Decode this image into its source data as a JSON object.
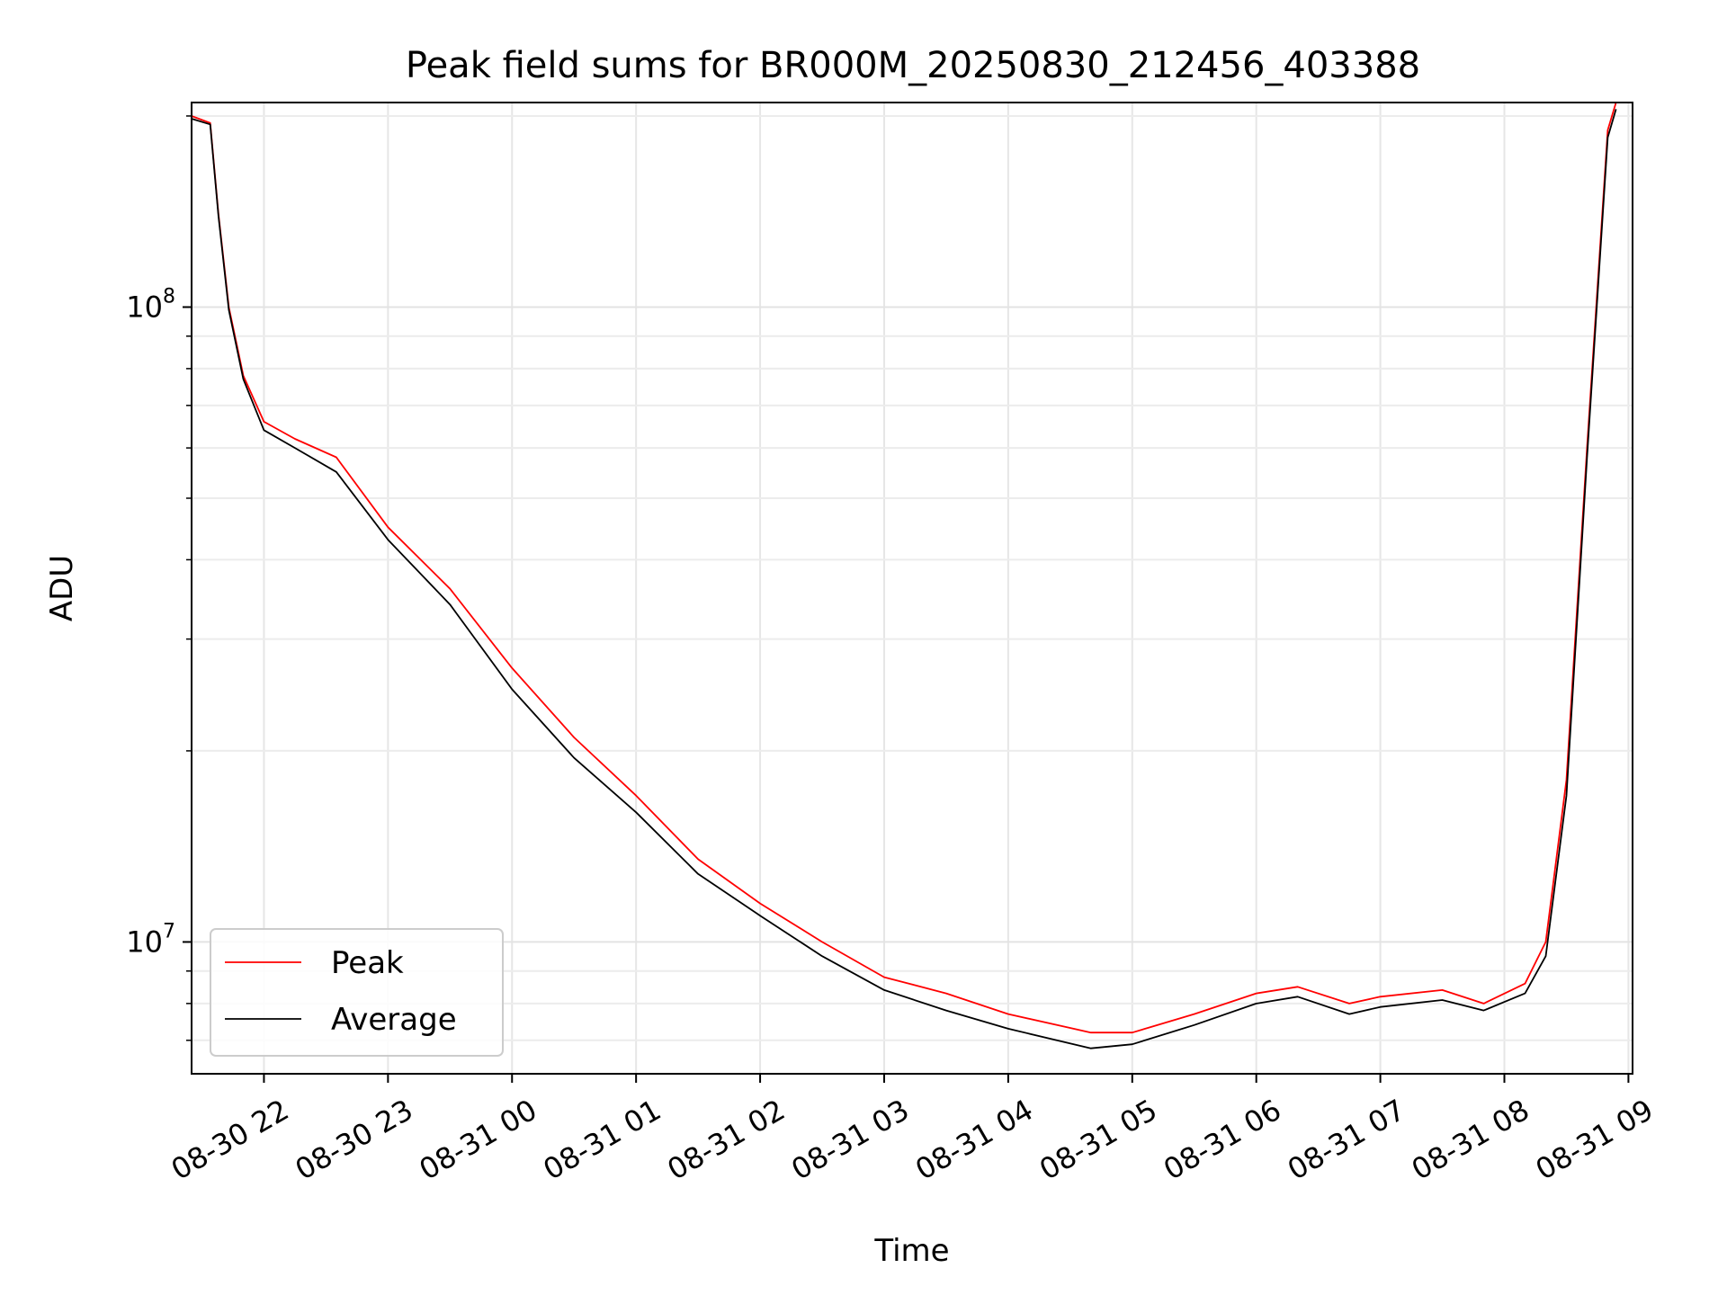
{
  "chart_data": {
    "type": "line",
    "title": "Peak field sums for BR000M_20250830_212456_403388",
    "xlabel": "Time",
    "ylabel": "ADU",
    "yscale": "log",
    "xlim": [
      "2025-08-30 21:25",
      "2025-08-31 09:02"
    ],
    "ylim": [
      6200000,
      210000000
    ],
    "grid": true,
    "legend_position": "lower-left",
    "x_ticks": [
      {
        "value": "2025-08-30 22:00",
        "label": "08-30 22"
      },
      {
        "value": "2025-08-30 23:00",
        "label": "08-30 23"
      },
      {
        "value": "2025-08-31 00:00",
        "label": "08-31 00"
      },
      {
        "value": "2025-08-31 01:00",
        "label": "08-31 01"
      },
      {
        "value": "2025-08-31 02:00",
        "label": "08-31 02"
      },
      {
        "value": "2025-08-31 03:00",
        "label": "08-31 03"
      },
      {
        "value": "2025-08-31 04:00",
        "label": "08-31 04"
      },
      {
        "value": "2025-08-31 05:00",
        "label": "08-31 05"
      },
      {
        "value": "2025-08-31 06:00",
        "label": "08-31 06"
      },
      {
        "value": "2025-08-31 07:00",
        "label": "08-31 07"
      },
      {
        "value": "2025-08-31 08:00",
        "label": "08-31 08"
      },
      {
        "value": "2025-08-31 09:00",
        "label": "08-31 09"
      }
    ],
    "y_ticks": [
      {
        "value": 10000000,
        "base": "10",
        "exp": "7"
      },
      {
        "value": 100000000,
        "base": "10",
        "exp": "8"
      }
    ],
    "series": [
      {
        "name": "Peak",
        "color": "#ff0000",
        "points": [
          [
            "2025-08-30 21:25",
            200000000
          ],
          [
            "2025-08-30 21:34",
            195000000
          ],
          [
            "2025-08-30 21:38",
            140000000
          ],
          [
            "2025-08-30 21:43",
            100000000
          ],
          [
            "2025-08-30 21:50",
            78000000
          ],
          [
            "2025-08-30 22:00",
            66000000
          ],
          [
            "2025-08-30 22:15",
            62000000
          ],
          [
            "2025-08-30 22:35",
            58000000
          ],
          [
            "2025-08-30 23:00",
            45000000
          ],
          [
            "2025-08-30 23:30",
            36000000
          ],
          [
            "2025-08-31 00:00",
            27000000
          ],
          [
            "2025-08-31 00:30",
            21000000
          ],
          [
            "2025-08-31 01:00",
            17000000
          ],
          [
            "2025-08-31 01:30",
            13500000
          ],
          [
            "2025-08-31 02:00",
            11500000
          ],
          [
            "2025-08-31 02:30",
            10000000
          ],
          [
            "2025-08-31 03:00",
            8800000
          ],
          [
            "2025-08-31 03:30",
            8300000
          ],
          [
            "2025-08-31 04:00",
            7700000
          ],
          [
            "2025-08-31 04:40",
            7200000
          ],
          [
            "2025-08-31 05:00",
            7200000
          ],
          [
            "2025-08-31 05:30",
            7700000
          ],
          [
            "2025-08-31 06:00",
            8300000
          ],
          [
            "2025-08-31 06:20",
            8500000
          ],
          [
            "2025-08-31 06:45",
            8000000
          ],
          [
            "2025-08-31 07:00",
            8200000
          ],
          [
            "2025-08-31 07:30",
            8400000
          ],
          [
            "2025-08-31 07:50",
            8000000
          ],
          [
            "2025-08-31 08:10",
            8600000
          ],
          [
            "2025-08-31 08:20",
            10000000
          ],
          [
            "2025-08-31 08:30",
            18000000
          ],
          [
            "2025-08-31 08:40",
            60000000
          ],
          [
            "2025-08-31 08:50",
            190000000
          ],
          [
            "2025-08-31 08:54",
            210000000
          ]
        ]
      },
      {
        "name": "Average",
        "color": "#000000",
        "points": [
          [
            "2025-08-30 21:25",
            198000000
          ],
          [
            "2025-08-30 21:34",
            194000000
          ],
          [
            "2025-08-30 21:38",
            139000000
          ],
          [
            "2025-08-30 21:43",
            99000000
          ],
          [
            "2025-08-30 21:50",
            77000000
          ],
          [
            "2025-08-30 22:00",
            64000000
          ],
          [
            "2025-08-30 22:15",
            60000000
          ],
          [
            "2025-08-30 22:35",
            55000000
          ],
          [
            "2025-08-30 23:00",
            43000000
          ],
          [
            "2025-08-30 23:30",
            34000000
          ],
          [
            "2025-08-31 00:00",
            25000000
          ],
          [
            "2025-08-31 00:30",
            19500000
          ],
          [
            "2025-08-31 01:00",
            16000000
          ],
          [
            "2025-08-31 01:30",
            12800000
          ],
          [
            "2025-08-31 02:00",
            11000000
          ],
          [
            "2025-08-31 02:30",
            9500000
          ],
          [
            "2025-08-31 03:00",
            8400000
          ],
          [
            "2025-08-31 03:30",
            7800000
          ],
          [
            "2025-08-31 04:00",
            7300000
          ],
          [
            "2025-08-31 04:40",
            6800000
          ],
          [
            "2025-08-31 05:00",
            6900000
          ],
          [
            "2025-08-31 05:30",
            7400000
          ],
          [
            "2025-08-31 06:00",
            8000000
          ],
          [
            "2025-08-31 06:20",
            8200000
          ],
          [
            "2025-08-31 06:45",
            7700000
          ],
          [
            "2025-08-31 07:00",
            7900000
          ],
          [
            "2025-08-31 07:30",
            8100000
          ],
          [
            "2025-08-31 07:50",
            7800000
          ],
          [
            "2025-08-31 08:10",
            8300000
          ],
          [
            "2025-08-31 08:20",
            9500000
          ],
          [
            "2025-08-31 08:30",
            17000000
          ],
          [
            "2025-08-31 08:40",
            58000000
          ],
          [
            "2025-08-31 08:50",
            185000000
          ],
          [
            "2025-08-31 08:54",
            205000000
          ]
        ]
      }
    ]
  }
}
